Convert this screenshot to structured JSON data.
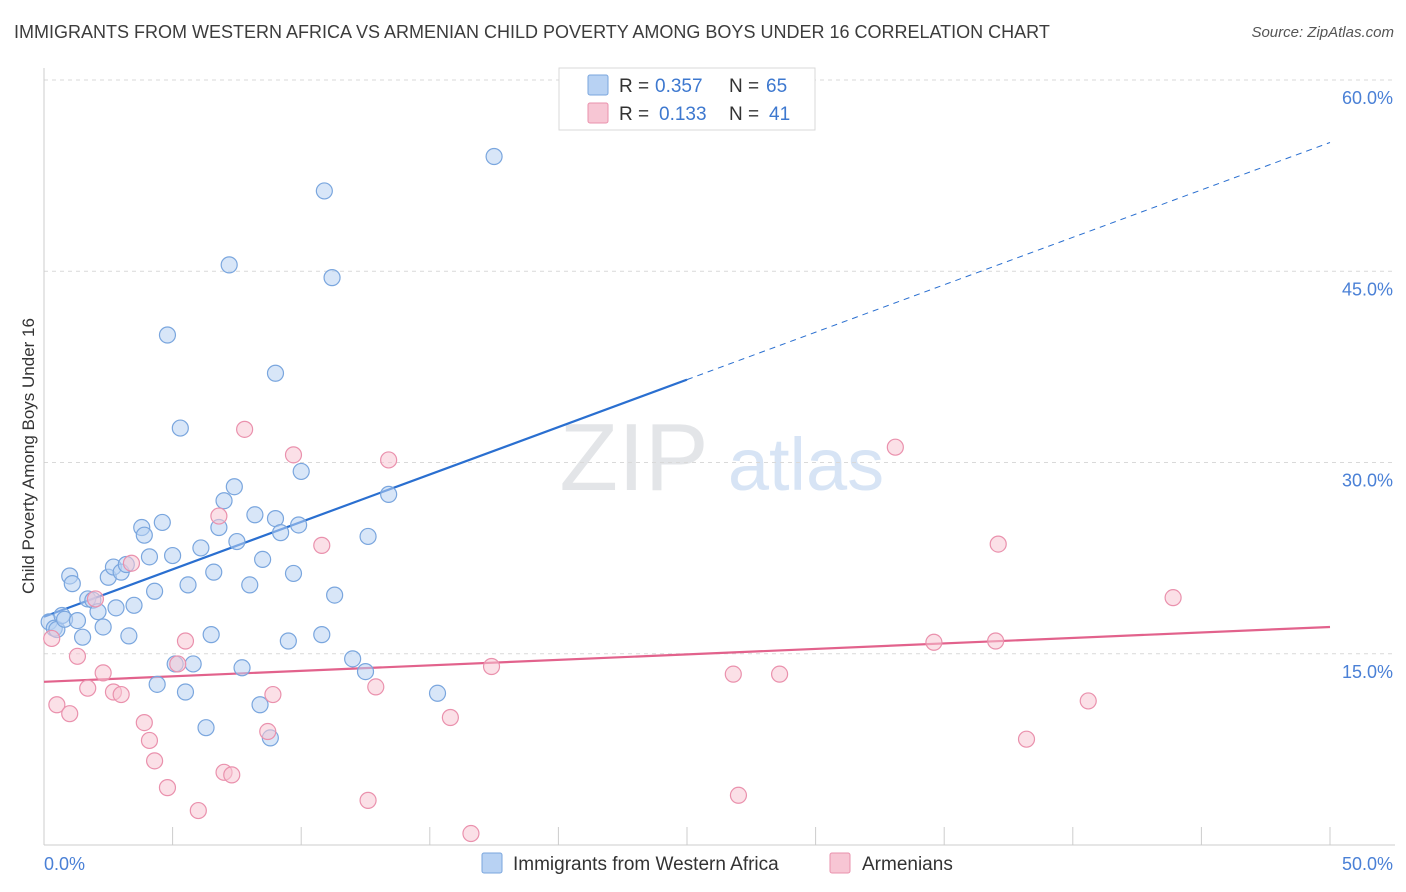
{
  "header": {
    "title": "IMMIGRANTS FROM WESTERN AFRICA VS ARMENIAN CHILD POVERTY AMONG BOYS UNDER 16 CORRELATION CHART",
    "source": "Source: ZipAtlas.com"
  },
  "watermark": {
    "zip": "ZIP",
    "atlas": "atlas"
  },
  "legend_top": {
    "r_label": "R =",
    "n_label": "N =",
    "rows": [
      {
        "r": "0.357",
        "n": "65"
      },
      {
        "r": "0.133",
        "n": "41"
      }
    ]
  },
  "chart_data": {
    "type": "scatter",
    "title": "IMMIGRANTS FROM WESTERN AFRICA VS ARMENIAN CHILD POVERTY AMONG BOYS UNDER 16 CORRELATION CHART",
    "xlabel": "",
    "ylabel": "Child Poverty Among Boys Under 16",
    "xlim": [
      0,
      50
    ],
    "ylim": [
      0,
      60
    ],
    "x_ticks": [
      0,
      5,
      10,
      15,
      20,
      25,
      30,
      35,
      40,
      45,
      50
    ],
    "x_tick_labels": [
      {
        "value": 0,
        "label": "0.0%"
      },
      {
        "value": 50,
        "label": "50.0%"
      }
    ],
    "y_ticks": [
      {
        "value": 15,
        "label": "15.0%"
      },
      {
        "value": 30,
        "label": "30.0%"
      },
      {
        "value": 45,
        "label": "45.0%"
      },
      {
        "value": 60,
        "label": "60.0%"
      }
    ],
    "grid": true,
    "colors": {
      "blue_fill": "#b8d2f3",
      "blue_stroke": "#7aa6de",
      "blue_line": "#2a6fd0",
      "pink_fill": "#f7c6d4",
      "pink_stroke": "#ea91ad",
      "pink_line": "#e2628c",
      "tick_label": "#4a80d6"
    },
    "series": [
      {
        "name": "Immigrants from Western Africa",
        "color": "blue",
        "r": 0.357,
        "n": 65,
        "trend": {
          "x0": 0,
          "y0": 17.9,
          "x1": 25,
          "y1": 36.5,
          "dash_to_x": 50
        },
        "points": [
          [
            0.2,
            17.5
          ],
          [
            0.4,
            17.0
          ],
          [
            0.5,
            16.9
          ],
          [
            0.7,
            18.0
          ],
          [
            0.8,
            17.7
          ],
          [
            1.0,
            21.1
          ],
          [
            1.1,
            20.5
          ],
          [
            1.3,
            17.6
          ],
          [
            1.5,
            16.3
          ],
          [
            1.7,
            19.3
          ],
          [
            1.9,
            19.2
          ],
          [
            2.1,
            18.3
          ],
          [
            2.3,
            17.1
          ],
          [
            2.5,
            21.0
          ],
          [
            2.7,
            21.8
          ],
          [
            2.8,
            18.6
          ],
          [
            3.0,
            21.4
          ],
          [
            3.2,
            22.0
          ],
          [
            3.3,
            16.4
          ],
          [
            3.5,
            18.8
          ],
          [
            3.8,
            24.9
          ],
          [
            3.9,
            24.3
          ],
          [
            4.1,
            22.6
          ],
          [
            4.3,
            19.9
          ],
          [
            4.4,
            12.6
          ],
          [
            4.6,
            25.3
          ],
          [
            5.0,
            22.7
          ],
          [
            5.1,
            14.2
          ],
          [
            5.3,
            32.7
          ],
          [
            5.5,
            12.0
          ],
          [
            5.6,
            20.4
          ],
          [
            5.8,
            14.2
          ],
          [
            6.1,
            23.3
          ],
          [
            6.3,
            9.2
          ],
          [
            6.5,
            16.5
          ],
          [
            6.6,
            21.4
          ],
          [
            6.8,
            24.9
          ],
          [
            7.0,
            27.0
          ],
          [
            7.2,
            45.5
          ],
          [
            7.4,
            28.1
          ],
          [
            7.5,
            23.8
          ],
          [
            7.7,
            13.9
          ],
          [
            8.0,
            20.4
          ],
          [
            8.2,
            25.9
          ],
          [
            8.4,
            11.0
          ],
          [
            8.5,
            22.4
          ],
          [
            8.8,
            8.4
          ],
          [
            9.0,
            25.6
          ],
          [
            9.2,
            24.5
          ],
          [
            9.5,
            16.0
          ],
          [
            9.7,
            21.3
          ],
          [
            9.9,
            25.1
          ],
          [
            10.0,
            29.3
          ],
          [
            10.8,
            16.5
          ],
          [
            10.9,
            51.3
          ],
          [
            11.2,
            44.5
          ],
          [
            11.3,
            19.6
          ],
          [
            12.0,
            14.6
          ],
          [
            12.5,
            13.6
          ],
          [
            12.6,
            24.2
          ],
          [
            13.4,
            27.5
          ],
          [
            15.3,
            11.9
          ],
          [
            17.5,
            54.0
          ],
          [
            4.8,
            40.0
          ],
          [
            9.0,
            37.0
          ]
        ]
      },
      {
        "name": "Armenians",
        "color": "pink",
        "r": 0.133,
        "n": 41,
        "trend": {
          "x0": 0,
          "y0": 12.8,
          "x1": 50,
          "y1": 17.1
        },
        "points": [
          [
            0.3,
            16.2
          ],
          [
            0.5,
            11.0
          ],
          [
            1.0,
            10.3
          ],
          [
            1.3,
            14.8
          ],
          [
            1.7,
            12.3
          ],
          [
            2.0,
            19.3
          ],
          [
            2.3,
            13.5
          ],
          [
            2.7,
            12.0
          ],
          [
            3.0,
            11.8
          ],
          [
            3.4,
            22.1
          ],
          [
            3.9,
            9.6
          ],
          [
            4.1,
            8.2
          ],
          [
            4.3,
            6.6
          ],
          [
            4.8,
            4.5
          ],
          [
            5.2,
            14.2
          ],
          [
            5.5,
            16.0
          ],
          [
            6.0,
            2.7
          ],
          [
            6.8,
            25.8
          ],
          [
            7.0,
            5.7
          ],
          [
            7.3,
            5.5
          ],
          [
            7.8,
            32.6
          ],
          [
            8.7,
            8.9
          ],
          [
            8.9,
            11.8
          ],
          [
            9.7,
            30.6
          ],
          [
            10.8,
            23.5
          ],
          [
            12.6,
            3.5
          ],
          [
            12.9,
            12.4
          ],
          [
            13.4,
            30.2
          ],
          [
            15.8,
            10.0
          ],
          [
            16.6,
            0.9
          ],
          [
            17.4,
            14.0
          ],
          [
            26.8,
            13.4
          ],
          [
            27.0,
            3.9
          ],
          [
            28.6,
            13.4
          ],
          [
            33.1,
            31.2
          ],
          [
            34.6,
            15.9
          ],
          [
            37.0,
            16.0
          ],
          [
            37.1,
            23.6
          ],
          [
            38.2,
            8.3
          ],
          [
            40.6,
            11.3
          ],
          [
            43.9,
            19.4
          ]
        ]
      }
    ],
    "legend": {
      "position": "bottom-center"
    }
  }
}
